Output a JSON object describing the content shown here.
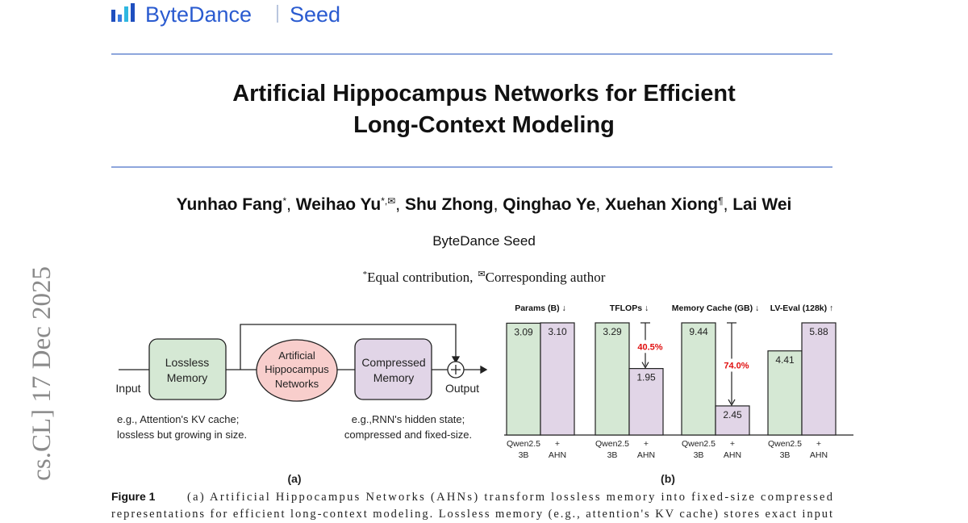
{
  "header": {
    "brand": "ByteDance",
    "product": "Seed"
  },
  "side_stamp": "cs.CL]  17 Dec 2025",
  "title": [
    "Artificial Hippocampus Networks for Efficient",
    "Long-Context Modeling"
  ],
  "authors": [
    {
      "name": "Yunhao Fang",
      "marks": "*"
    },
    {
      "name": "Weihao Yu",
      "marks": "*,✉"
    },
    {
      "name": "Shu Zhong"
    },
    {
      "name": "Qinghao Ye"
    },
    {
      "name": "Xuehan Xiong",
      "marks": "¶"
    },
    {
      "name": "Lai Wei"
    }
  ],
  "author_separator": ", ",
  "affiliation": "ByteDance Seed",
  "notes": [
    {
      "mark": "*",
      "text": "Equal contribution,"
    },
    {
      "mark": "✉",
      "text": "Corresponding author"
    }
  ],
  "diagram": {
    "lossless": [
      "Lossless",
      "Memory"
    ],
    "ahn": [
      "Artificial",
      "Hippocampus",
      "Networks"
    ],
    "compressed": [
      "Compressed",
      "Memory"
    ],
    "input": "Input",
    "output": "Output",
    "lossless_note": [
      "e.g., Attention's KV cache;",
      "lossless but growing in size."
    ],
    "compressed_note": [
      "e.g.,RNN's hidden state;",
      "compressed and fixed-size."
    ],
    "label": "(a)"
  },
  "chart_label": "(b)",
  "chart_data": [
    {
      "type": "bar",
      "title": "Params (B) ↓",
      "categories": [
        [
          "Qwen2.5",
          "3B"
        ],
        [
          "+",
          "AHN"
        ]
      ],
      "values": [
        3.09,
        3.1
      ],
      "value_labels": [
        "3.09",
        "3.10"
      ],
      "colors": [
        "#d5e8d4",
        "#e1d5e7"
      ]
    },
    {
      "type": "bar",
      "title": "TFLOPs ↓",
      "categories": [
        [
          "Qwen2.5",
          "3B"
        ],
        [
          "+",
          "AHN"
        ]
      ],
      "values": [
        3.29,
        1.95
      ],
      "colors": [
        "#d5e8d4",
        "#e1d5e7"
      ],
      "annotation": "40.5%"
    },
    {
      "type": "bar",
      "title": "Memory Cache (GB) ↓",
      "categories": [
        [
          "Qwen2.5",
          "3B"
        ],
        [
          "+",
          "AHN"
        ]
      ],
      "values": [
        9.44,
        2.45
      ],
      "colors": [
        "#d5e8d4",
        "#e1d5e7"
      ],
      "annotation": "74.0%"
    },
    {
      "type": "bar",
      "title": "LV-Eval (128k) ↑",
      "categories": [
        [
          "Qwen2.5",
          "3B"
        ],
        [
          "+",
          "AHN"
        ]
      ],
      "values": [
        4.41,
        5.88
      ],
      "colors": [
        "#d5e8d4",
        "#e1d5e7"
      ]
    }
  ],
  "caption": {
    "label": "Figure 1",
    "lines": [
      "(a) Artificial Hippocampus Networks (AHNs) transform lossless memory into fixed-size compressed",
      "representations for efficient long-context modeling. Lossless memory (e.g., attention's KV cache) stores exact input"
    ]
  }
}
